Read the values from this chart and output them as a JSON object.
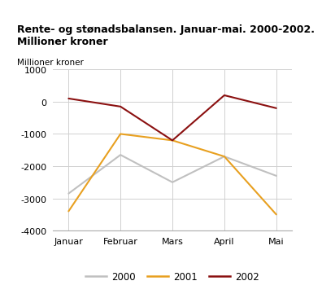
{
  "title_line1": "Rente- og stønadsbalansen. Januar-mai. 2000-2002.",
  "title_line2": "Millioner kroner",
  "ylabel": "Millioner kroner",
  "months": [
    "Januar",
    "Februar",
    "Mars",
    "April",
    "Mai"
  ],
  "series": {
    "2000": [
      -2850,
      -1650,
      -2500,
      -1700,
      -2300
    ],
    "2001": [
      -3400,
      -1000,
      -1200,
      -1700,
      -3500
    ],
    "2002": [
      100,
      -150,
      -1200,
      200,
      -200
    ]
  },
  "colors": {
    "2000": "#c0c0c0",
    "2001": "#e8a020",
    "2002": "#8b1010"
  },
  "ylim": [
    -4000,
    1000
  ],
  "yticks": [
    -4000,
    -3000,
    -2000,
    -1000,
    0,
    1000
  ],
  "background_color": "#ffffff",
  "title_bar_color": "#5bc8d2",
  "grid_color": "#d0d0d0",
  "bottom_bar_color": "#5bc8d2"
}
